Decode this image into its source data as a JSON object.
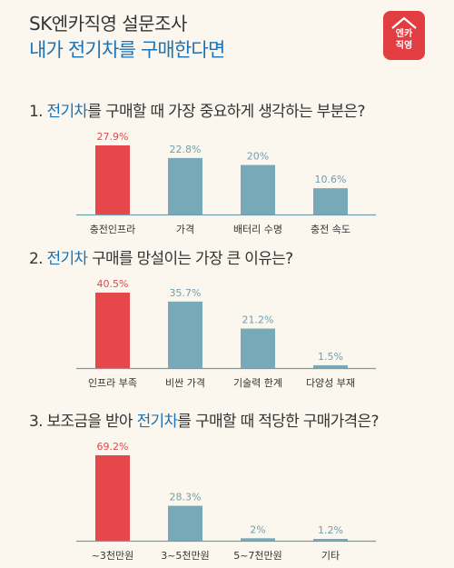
{
  "header": {
    "brand": "SK엔카직영 설문조사",
    "headline": "내가 전기차를 구매한다면",
    "logo_line1": "엔카",
    "logo_line2": "직영"
  },
  "colors": {
    "highlight_bar": "#e5474b",
    "default_bar": "#78a9b8",
    "label_red": "#e5474b",
    "label_teal": "#6f9fae",
    "question_accent": "#1c72b4"
  },
  "chart_data": [
    {
      "type": "bar",
      "question_prefix": "1. ",
      "question_highlight": "전기차",
      "question_suffix": "를 구매할 때 가장 중요하게 생각하는 부분은?",
      "categories": [
        "충전인프라",
        "가격",
        "배터리 수명",
        "충전 속도"
      ],
      "values": [
        27.9,
        22.8,
        20,
        10.6
      ],
      "value_labels": [
        "27.9%",
        "22.8%",
        "20%",
        "10.6%"
      ],
      "ylim": [
        0,
        27.9
      ]
    },
    {
      "type": "bar",
      "question_prefix": "2. ",
      "question_highlight": "전기차",
      "question_suffix": " 구매를 망설이는 가장 큰 이유는?",
      "categories": [
        "인프라 부족",
        "비싼 가격",
        "기술력 한계",
        "다양성 부재"
      ],
      "values": [
        40.5,
        35.7,
        21.2,
        1.5
      ],
      "value_labels": [
        "40.5%",
        "35.7%",
        "21.2%",
        "1.5%"
      ],
      "ylim": [
        0,
        40.5
      ]
    },
    {
      "type": "bar",
      "question_prefix": "3. 보조금을 받아 ",
      "question_highlight": "전기차",
      "question_suffix": "를 구매할 때 적당한 구매가격은?",
      "categories": [
        "~3천만원",
        "3~5천만원",
        "5~7천만원",
        "기타"
      ],
      "values": [
        69.2,
        28.3,
        2,
        1.2
      ],
      "value_labels": [
        "69.2%",
        "28.3%",
        "2%",
        "1.2%"
      ],
      "ylim": [
        0,
        69.2
      ]
    }
  ]
}
